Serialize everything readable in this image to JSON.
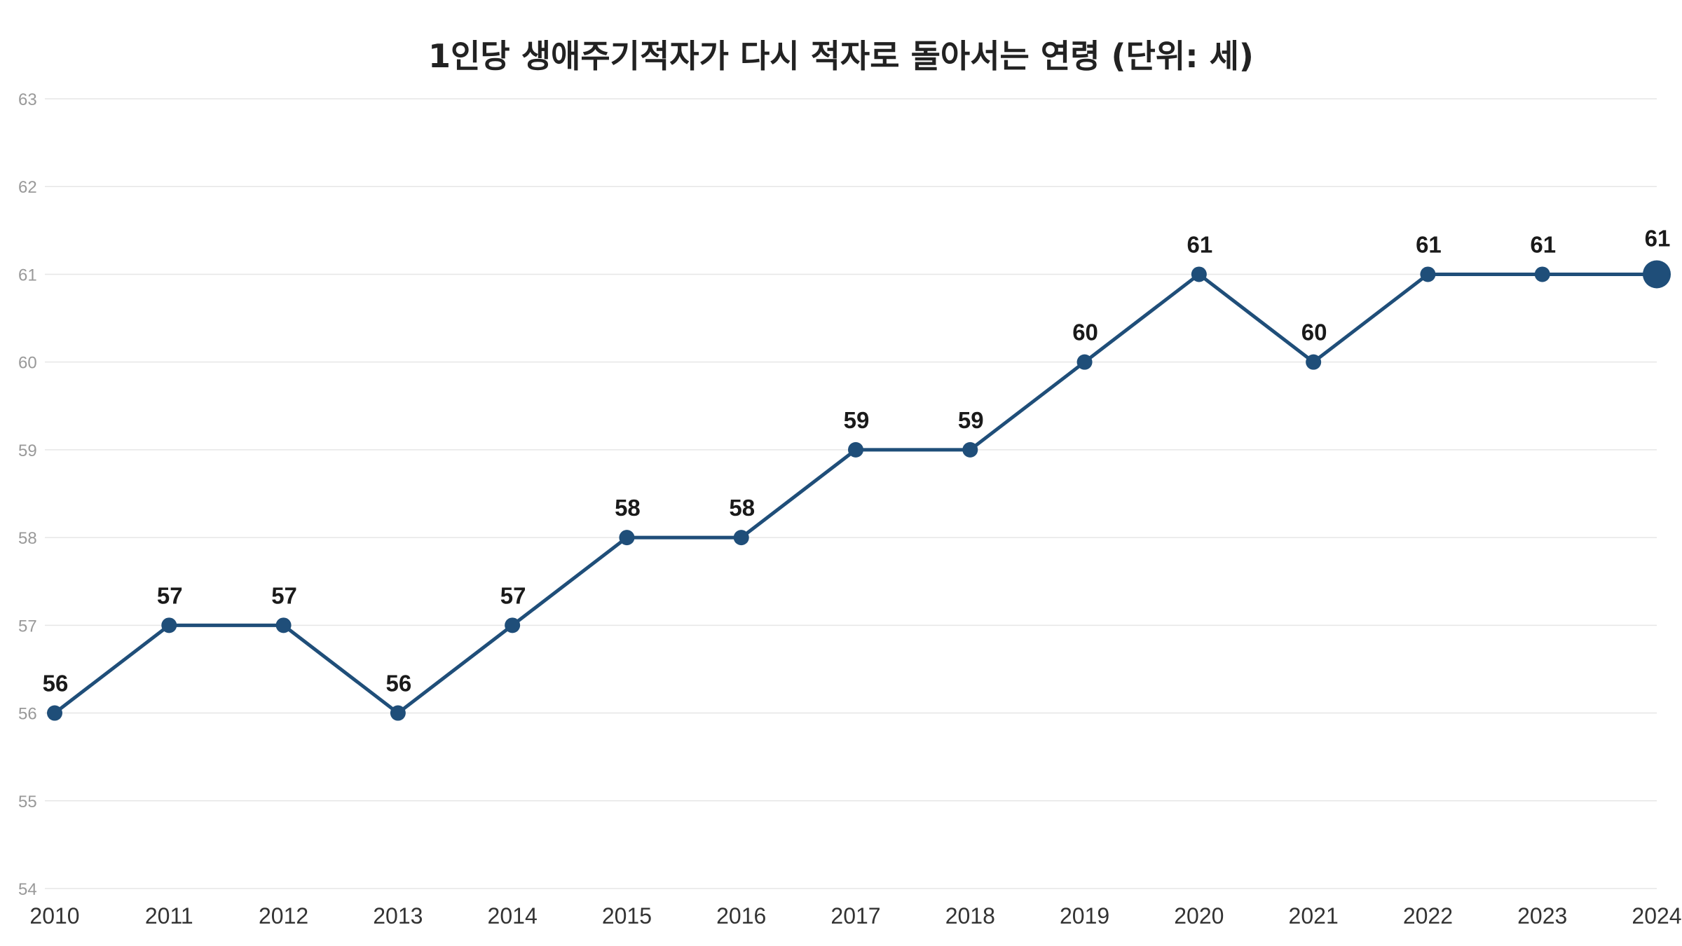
{
  "chart_data": {
    "type": "line",
    "title": "1인당 생애주기적자가 다시 적자로 돌아서는 연령 (단위: 세)",
    "xlabel": "",
    "ylabel": "",
    "categories": [
      "2010",
      "2011",
      "2012",
      "2013",
      "2014",
      "2015",
      "2016",
      "2017",
      "2018",
      "2019",
      "2020",
      "2021",
      "2022",
      "2023",
      "2024"
    ],
    "series": [
      {
        "values": [
          56,
          57,
          57,
          56,
          57,
          58,
          58,
          59,
          59,
          60,
          61,
          60,
          61,
          61,
          61
        ],
        "color": "#1f4e79"
      }
    ],
    "ylim": [
      54,
      63
    ],
    "yticks": [
      54,
      55,
      56,
      57,
      58,
      59,
      60,
      61,
      62,
      63
    ],
    "grid": true,
    "highlight_last_point": true,
    "legend": "none"
  }
}
